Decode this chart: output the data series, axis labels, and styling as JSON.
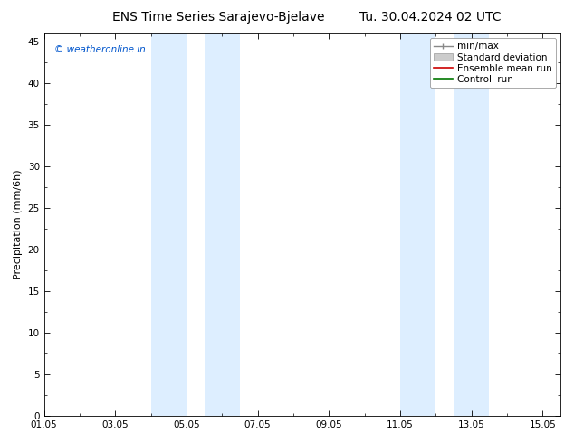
{
  "title_left": "ENS Time Series Sarajevo-Bjelave",
  "title_right": "Tu. 30.04.2024 02 UTC",
  "ylabel": "Precipitation (mm/6h)",
  "watermark": "© weatheronline.in",
  "ylim": [
    0,
    46
  ],
  "yticks": [
    0,
    5,
    10,
    15,
    20,
    25,
    30,
    35,
    40,
    45
  ],
  "xlim": [
    0,
    14.5
  ],
  "xtick_labels": [
    "01.05",
    "03.05",
    "05.05",
    "07.05",
    "09.05",
    "11.05",
    "13.05",
    "15.05"
  ],
  "xtick_positions": [
    0,
    2,
    4,
    6,
    8,
    10,
    12,
    14
  ],
  "shaded_bands": [
    {
      "xmin": 3.0,
      "xmax": 4.0
    },
    {
      "xmin": 4.5,
      "xmax": 5.5
    },
    {
      "xmin": 10.0,
      "xmax": 11.0
    },
    {
      "xmin": 11.5,
      "xmax": 12.5
    }
  ],
  "shade_color": "#ddeeff",
  "legend_items": [
    {
      "label": "min/max",
      "color": "#aaaaaa",
      "type": "line_caps"
    },
    {
      "label": "Standard deviation",
      "color": "#cccccc",
      "type": "fill"
    },
    {
      "label": "Ensemble mean run",
      "color": "#cc0000",
      "type": "line"
    },
    {
      "label": "Controll run",
      "color": "#007700",
      "type": "line"
    }
  ],
  "background_color": "#ffffff",
  "plot_bg_color": "#ffffff",
  "grid_color": "#dddddd",
  "title_fontsize": 10,
  "axis_fontsize": 8,
  "tick_fontsize": 7.5,
  "watermark_color": "#0055cc",
  "watermark_fontsize": 7.5
}
